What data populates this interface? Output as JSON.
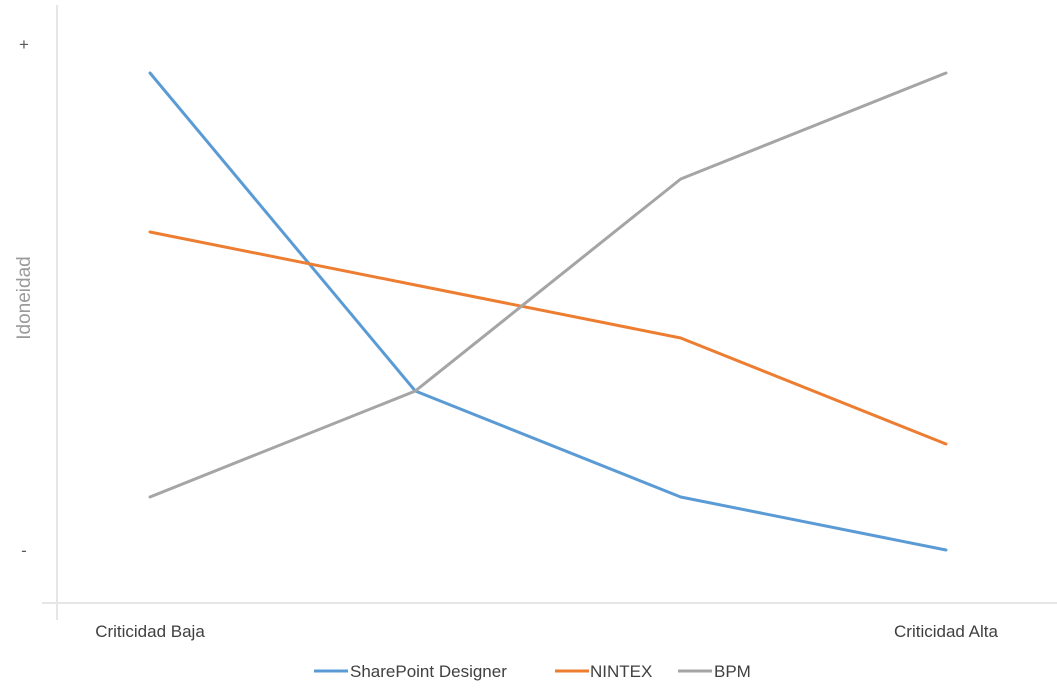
{
  "chart_data": {
    "type": "line",
    "x": [
      1,
      2,
      3,
      4
    ],
    "categories": [
      "Criticidad Baja",
      "",
      "",
      "Criticidad Alta"
    ],
    "ylabel": "Idoneidad",
    "ylim": [
      0,
      9
    ],
    "yticks": [
      {
        "value": 9,
        "label": "+"
      },
      {
        "value": 0,
        "label": "-"
      }
    ],
    "grid": false,
    "legend": "bottom",
    "series": [
      {
        "name": "SharePoint Designer",
        "color": "#5b9bd5",
        "values": [
          9,
          3,
          1,
          0
        ]
      },
      {
        "name": "NINTEX",
        "color": "#ed7d31",
        "values": [
          6,
          5,
          4,
          2
        ]
      },
      {
        "name": "BPM",
        "color": "#a5a5a5",
        "values": [
          1,
          3,
          7,
          9
        ]
      }
    ]
  }
}
